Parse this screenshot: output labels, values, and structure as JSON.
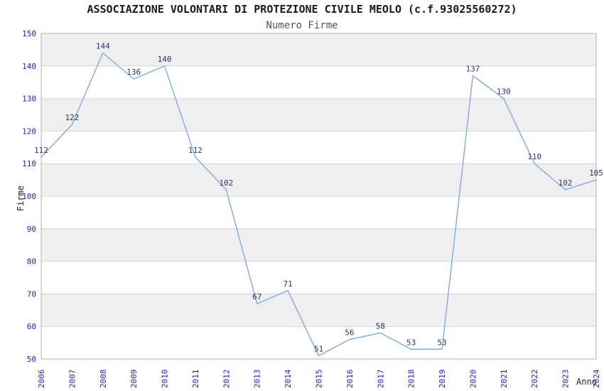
{
  "chart_data": {
    "type": "line",
    "title": "ASSOCIAZIONE VOLONTARI DI PROTEZIONE CIVILE MEOLO (c.f.93025560272)",
    "subtitle": "Numero Firme",
    "xlabel": "Anno",
    "ylabel": "Firme",
    "categories": [
      "2006",
      "2007",
      "2008",
      "2009",
      "2010",
      "2011",
      "2012",
      "2013",
      "2014",
      "2015",
      "2016",
      "2017",
      "2018",
      "2019",
      "2020",
      "2021",
      "2022",
      "2023",
      "2024"
    ],
    "values": [
      112,
      122,
      144,
      136,
      140,
      112,
      102,
      67,
      71,
      51,
      56,
      58,
      53,
      53,
      137,
      130,
      110,
      102,
      105
    ],
    "ylim": [
      50,
      150
    ],
    "ytick_step": 10,
    "grid": true,
    "legend": "none",
    "markers": "none",
    "colors": {
      "line": "#7fафe8",
      "line_stroke": "#7cabe4",
      "tick_label": "#2222cc",
      "data_label": "#333366",
      "band_gray": "#efefef",
      "band_white": "#ffffff",
      "gridline": "#d6d6d6",
      "plot_border": "#b0b0b0",
      "title_text": "#1a1a1a",
      "subtitle_text": "#555555",
      "axis_title_text": "#222222"
    }
  }
}
